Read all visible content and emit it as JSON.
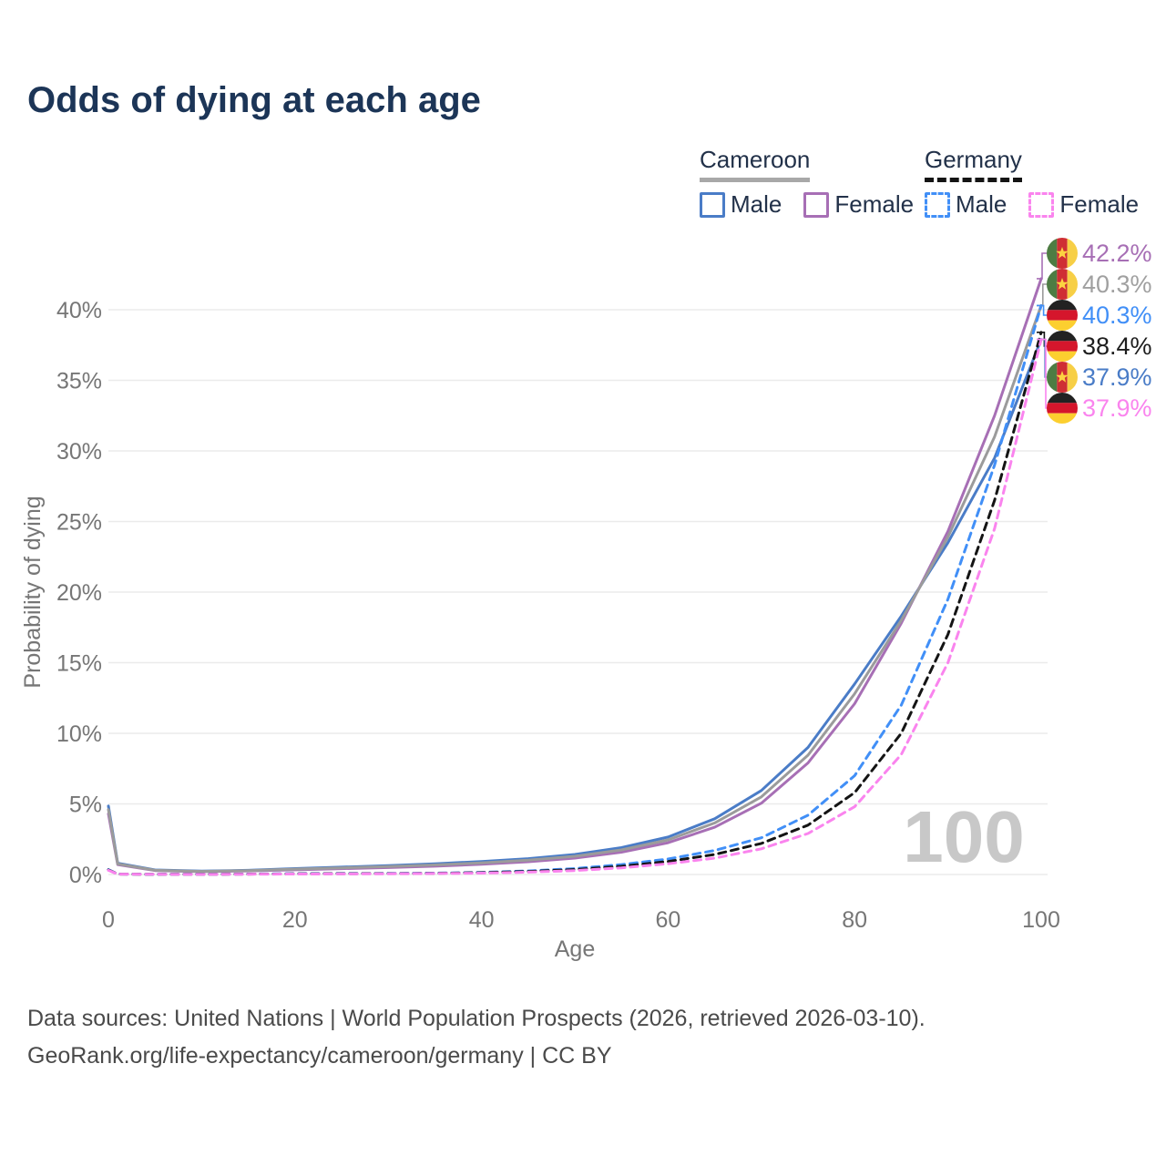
{
  "header": {
    "title": "Odds of dying at each age"
  },
  "legend": {
    "groups": [
      {
        "country": "Cameroon",
        "line_style": "solid",
        "line_color": "#a8a8a8",
        "items": [
          {
            "label": "Male",
            "color": "#4a7cc7",
            "dashed": false
          },
          {
            "label": "Female",
            "color": "#a76fb5",
            "dashed": false
          }
        ]
      },
      {
        "country": "Germany",
        "line_style": "dashed",
        "line_color": "#141414",
        "items": [
          {
            "label": "Male",
            "color": "#418ff7",
            "dashed": true
          },
          {
            "label": "Female",
            "color": "#fa84ee",
            "dashed": true
          }
        ]
      }
    ]
  },
  "chart_data": {
    "type": "line",
    "title": "Odds of dying at each age",
    "xlabel": "Age",
    "ylabel": "Probability of dying",
    "xlim": [
      0,
      100
    ],
    "ylim": [
      0,
      44
    ],
    "x_ticks": [
      0,
      20,
      40,
      60,
      80,
      100
    ],
    "y_ticks": [
      0,
      5,
      10,
      15,
      20,
      25,
      30,
      35,
      40
    ],
    "y_tick_suffix": "%",
    "grid": "horizontal",
    "watermark": "100",
    "ages": [
      0,
      1,
      5,
      10,
      15,
      20,
      25,
      30,
      35,
      40,
      45,
      50,
      55,
      60,
      65,
      70,
      75,
      80,
      85,
      90,
      95,
      100
    ],
    "series": [
      {
        "name": "Cameroon Male",
        "flag": "cm",
        "dashed": false,
        "color": "#4a7cc7",
        "end_value": 37.9,
        "end_label": "37.9%",
        "values": [
          4.85,
          0.8,
          0.32,
          0.24,
          0.3,
          0.42,
          0.52,
          0.63,
          0.76,
          0.92,
          1.12,
          1.42,
          1.9,
          2.65,
          3.95,
          5.95,
          9.0,
          13.5,
          18.3,
          23.5,
          29.5,
          37.9
        ]
      },
      {
        "name": "Cameroon Female",
        "flag": "cm",
        "dashed": false,
        "color": "#a76fb5",
        "end_value": 42.2,
        "end_label": "42.2%",
        "values": [
          4.3,
          0.7,
          0.28,
          0.2,
          0.25,
          0.33,
          0.41,
          0.49,
          0.59,
          0.72,
          0.9,
          1.16,
          1.58,
          2.25,
          3.35,
          5.05,
          7.9,
          12.1,
          17.8,
          24.3,
          32.5,
          42.2
        ]
      },
      {
        "name": "Cameroon Both sexes",
        "flag": "cm",
        "dashed": false,
        "color": "#9b9b9b",
        "label_color": "#a0a0a0",
        "end_value": 40.3,
        "end_label": "40.3%",
        "values": [
          4.6,
          0.75,
          0.3,
          0.22,
          0.28,
          0.38,
          0.47,
          0.56,
          0.68,
          0.82,
          1.01,
          1.29,
          1.74,
          2.45,
          3.65,
          5.5,
          8.45,
          12.8,
          18.0,
          23.9,
          31.0,
          40.3
        ]
      },
      {
        "name": "Germany Male",
        "flag": "de",
        "dashed": true,
        "color": "#418ff7",
        "end_value": 40.3,
        "end_label": "40.3%",
        "values": [
          0.35,
          0.03,
          0.015,
          0.012,
          0.03,
          0.06,
          0.07,
          0.08,
          0.1,
          0.15,
          0.25,
          0.42,
          0.7,
          1.1,
          1.7,
          2.6,
          4.2,
          7.0,
          12.0,
          19.5,
          29.0,
          40.3
        ]
      },
      {
        "name": "Germany Both sexes",
        "flag": "de",
        "dashed": true,
        "color": "#141414",
        "label_color": "#1d1d1d",
        "end_value": 38.4,
        "end_label": "38.4%",
        "values": [
          0.32,
          0.028,
          0.013,
          0.01,
          0.025,
          0.045,
          0.055,
          0.065,
          0.085,
          0.13,
          0.21,
          0.35,
          0.58,
          0.92,
          1.42,
          2.2,
          3.5,
          5.8,
          10.0,
          17.0,
          26.5,
          38.4
        ]
      },
      {
        "name": "Germany Female",
        "flag": "de",
        "dashed": true,
        "color": "#fa84ee",
        "end_value": 37.9,
        "end_label": "37.9%",
        "values": [
          0.3,
          0.025,
          0.012,
          0.009,
          0.02,
          0.03,
          0.04,
          0.05,
          0.07,
          0.1,
          0.17,
          0.28,
          0.47,
          0.76,
          1.16,
          1.82,
          2.9,
          4.8,
          8.5,
          15.0,
          24.5,
          37.9
        ]
      }
    ],
    "flag_colors": {
      "cm": {
        "green": "#4d7c43",
        "red": "#cf2e34",
        "yellow": "#f7cf46",
        "star": "#fcd341"
      },
      "de": {
        "black": "#222222",
        "red": "#d5162c",
        "gold": "#fccf2f"
      }
    },
    "axis_text_color": "#767676",
    "grid_color": "#ebebeb",
    "watermark_color": "#c8c8c8"
  },
  "footer": {
    "line1": "Data sources: United Nations | World Population Prospects (2026, retrieved 2026-03-10).",
    "line2": "GeoRank.org/life-expectancy/cameroon/germany | CC BY"
  }
}
